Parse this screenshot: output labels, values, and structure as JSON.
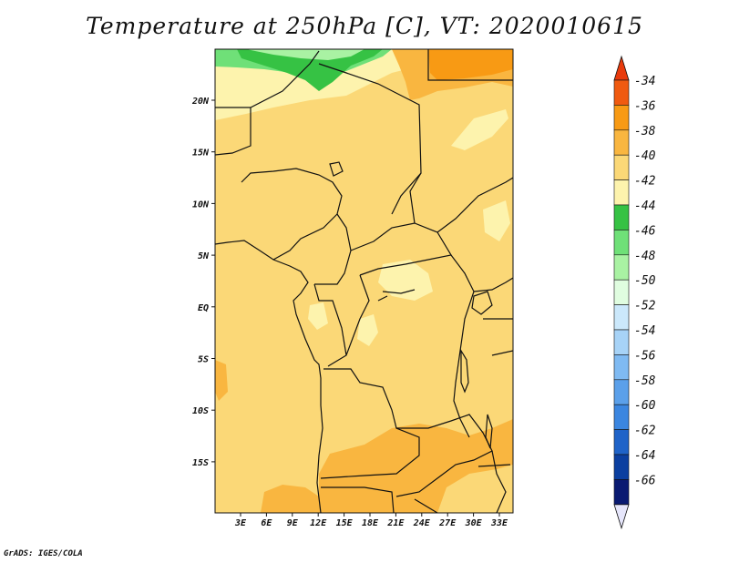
{
  "title": "Temperature at 250hPa [C], VT: 2020010615",
  "credit": "GrADS: IGES/COLA",
  "map": {
    "lon_ticks": [
      "3E",
      "6E",
      "9E",
      "12E",
      "15E",
      "18E",
      "21E",
      "24E",
      "27E",
      "30E",
      "33E"
    ],
    "lat_ticks": [
      "20N",
      "15N",
      "10N",
      "5N",
      "EQ",
      "5S",
      "10S",
      "15S"
    ]
  },
  "colorbar": {
    "levels": [
      "-34",
      "-36",
      "-38",
      "-40",
      "-42",
      "-44",
      "-46",
      "-48",
      "-50",
      "-52",
      "-54",
      "-56",
      "-58",
      "-60",
      "-62",
      "-64",
      "-66"
    ],
    "colors": [
      "#f05a10",
      "#f89a14",
      "#f9b640",
      "#fbd877",
      "#fdf3ad",
      "#36c244",
      "#6fe078",
      "#a9f2a3",
      "#e0fde0",
      "#cbe8fb",
      "#a7d3f7",
      "#7fbaf2",
      "#5ba0ea",
      "#3b86e0",
      "#1f63c8",
      "#0b3fa0",
      "#0a1a72"
    ],
    "top_arrow_color": "#e83a0c",
    "bottom_arrow_color": "#e6e6fb"
  },
  "field_colors": {
    "base": "#fbd877",
    "warm": "#f9b640",
    "warmer": "#f89a14",
    "cool": "#fdf3ad",
    "green": "#36c244",
    "light_green": "#6fe078",
    "pale_green": "#a9f2a3"
  }
}
